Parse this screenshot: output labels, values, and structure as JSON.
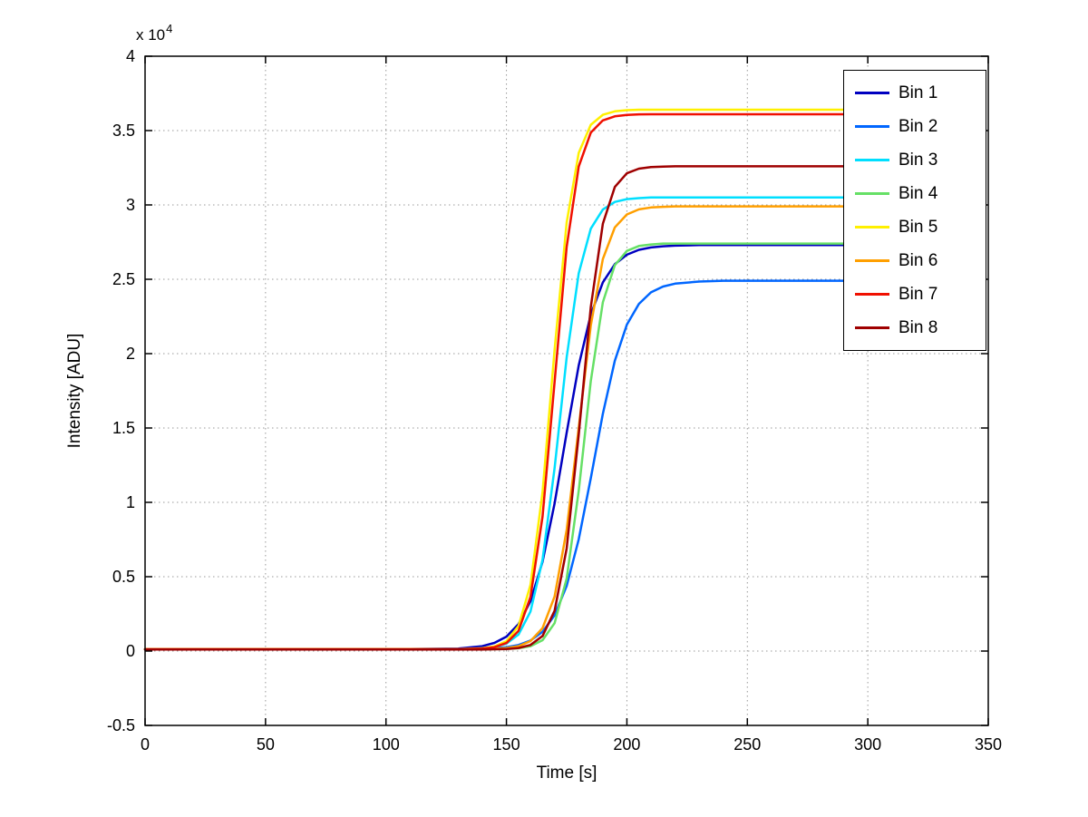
{
  "figure": {
    "background": "#ffffff",
    "y_multiplier_base": "x 10",
    "y_multiplier_exp": "4"
  },
  "chart_data": {
    "type": "line",
    "title": "",
    "xlabel": "Time [s]",
    "ylabel": "Intensity [ADU]",
    "xlim": [
      0,
      350
    ],
    "ylim": [
      -5000,
      40000
    ],
    "grid": true,
    "legend_position": "top-right",
    "x_ticks": [
      0,
      50,
      100,
      150,
      200,
      250,
      300,
      350
    ],
    "x_tick_labels": [
      "0",
      "50",
      "100",
      "150",
      "200",
      "250",
      "300",
      "350"
    ],
    "y_ticks": [
      -5000,
      0,
      5000,
      10000,
      15000,
      20000,
      25000,
      30000,
      35000,
      40000
    ],
    "y_tick_labels": [
      "-0.5",
      "0",
      "0.5",
      "1",
      "1.5",
      "2",
      "2.5",
      "3",
      "3.5",
      "4"
    ],
    "x": [
      0,
      50,
      100,
      130,
      140,
      145,
      150,
      155,
      160,
      165,
      170,
      175,
      180,
      185,
      190,
      195,
      200,
      205,
      210,
      215,
      220,
      230,
      240,
      260,
      280,
      293
    ],
    "series": [
      {
        "name": "Bin 1",
        "color": "#0000c0",
        "values": [
          120,
          120,
          120,
          170,
          330,
          550,
          970,
          1820,
          3350,
          6010,
          9930,
          14680,
          19200,
          22630,
          24790,
          26010,
          26650,
          26980,
          27140,
          27220,
          27260,
          27300,
          27300,
          27300,
          27300,
          27300
        ]
      },
      {
        "name": "Bin 2",
        "color": "#0066ff",
        "values": [
          120,
          120,
          120,
          130,
          160,
          190,
          260,
          410,
          710,
          1300,
          2410,
          4380,
          7510,
          11620,
          15950,
          19520,
          21950,
          23350,
          24120,
          24510,
          24710,
          24850,
          24900,
          24900,
          24900,
          24900
        ]
      },
      {
        "name": "Bin 3",
        "color": "#00dfff",
        "values": [
          130,
          130,
          130,
          130,
          180,
          270,
          500,
          1110,
          2660,
          6140,
          12310,
          19750,
          25400,
          28400,
          29690,
          30200,
          30390,
          30460,
          30500,
          30500,
          30500,
          30500,
          30500,
          30500,
          30500,
          30500
        ]
      },
      {
        "name": "Bin 4",
        "color": "#66e066",
        "values": [
          120,
          120,
          120,
          120,
          120,
          130,
          140,
          190,
          330,
          730,
          1880,
          4870,
          10780,
          18150,
          23450,
          25950,
          26910,
          27240,
          27340,
          27400,
          27400,
          27400,
          27400,
          27400,
          27400,
          27400
        ]
      },
      {
        "name": "Bin 5",
        "color": "#fff000",
        "values": [
          130,
          130,
          130,
          130,
          190,
          310,
          660,
          1680,
          4450,
          10690,
          20260,
          28820,
          33500,
          35390,
          36060,
          36290,
          36370,
          36400,
          36400,
          36400,
          36400,
          36400,
          36400,
          36400,
          36400,
          36400
        ]
      },
      {
        "name": "Bin 6",
        "color": "#ff9f00",
        "values": [
          130,
          130,
          130,
          130,
          140,
          160,
          200,
          330,
          670,
          1540,
          3670,
          8140,
          15020,
          21890,
          26360,
          28490,
          29360,
          29700,
          29830,
          29870,
          29900,
          29900,
          29900,
          29900,
          29900,
          29900
        ]
      },
      {
        "name": "Bin 7",
        "color": "#f01000",
        "values": [
          120,
          120,
          120,
          120,
          170,
          260,
          540,
          1360,
          3640,
          9040,
          18110,
          27180,
          32580,
          34860,
          35680,
          35960,
          36050,
          36090,
          36100,
          36100,
          36100,
          36100,
          36100,
          36100,
          36100,
          36100
        ]
      },
      {
        "name": "Bin 8",
        "color": "#9f0000",
        "values": [
          110,
          110,
          110,
          110,
          110,
          120,
          140,
          210,
          410,
          1010,
          2710,
          6900,
          14560,
          23130,
          28730,
          31210,
          32130,
          32440,
          32550,
          32580,
          32600,
          32600,
          32600,
          32600,
          32600,
          32600
        ]
      }
    ]
  }
}
